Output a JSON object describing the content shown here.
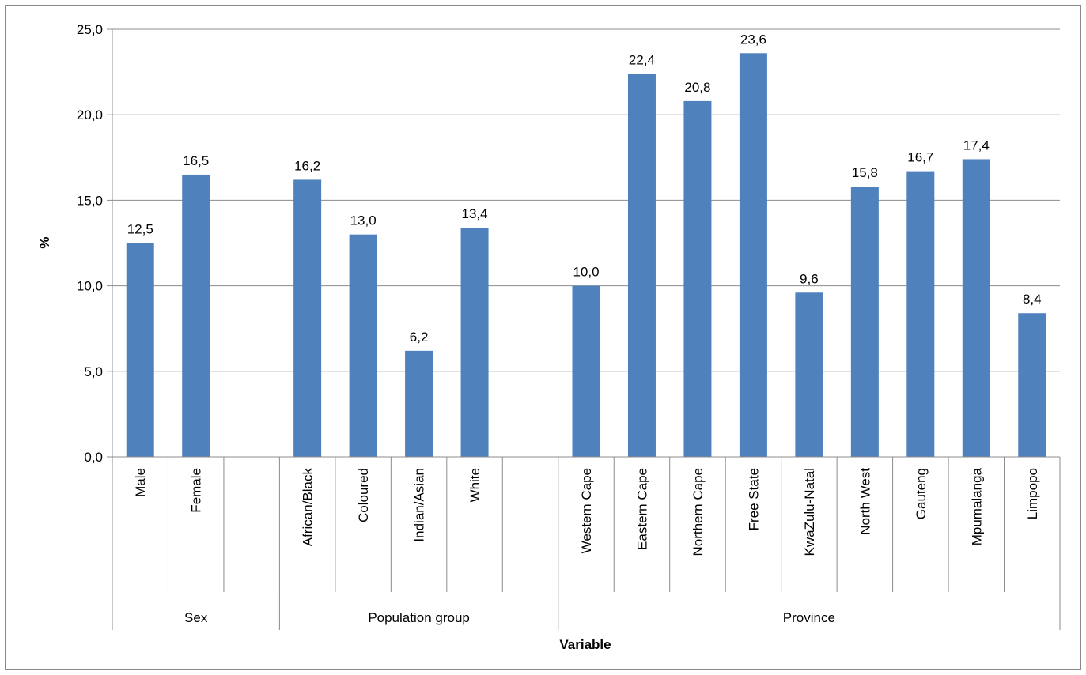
{
  "chart_data": {
    "type": "bar",
    "ylabel": "%",
    "xlabel": "Variable",
    "ylim": [
      0,
      25
    ],
    "ytick_step": 5,
    "ytick_labels": [
      "0,0",
      "5,0",
      "10,0",
      "15,0",
      "20,0",
      "25,0"
    ],
    "grid": "horizontal",
    "bar_color": "#4F81BD",
    "groups": [
      {
        "name": "Sex",
        "categories": [
          "Male",
          "Female",
          ""
        ]
      },
      {
        "name": "Population group",
        "categories": [
          "African/Black",
          "Coloured",
          "Indian/Asian",
          "White",
          ""
        ]
      },
      {
        "name": "Province",
        "categories": [
          "Western Cape",
          "Eastern Cape",
          "Northern Cape",
          "Free State",
          "KwaZulu-Natal",
          "North West",
          "Gauteng",
          "Mpumalanga",
          "Limpopo"
        ]
      }
    ],
    "categories": [
      "Male",
      "Female",
      "",
      "African/Black",
      "Coloured",
      "Indian/Asian",
      "White",
      "",
      "Western Cape",
      "Eastern Cape",
      "Northern Cape",
      "Free State",
      "KwaZulu-Natal",
      "North West",
      "Gauteng",
      "Mpumalanga",
      "Limpopo"
    ],
    "values": [
      12.5,
      16.5,
      null,
      16.2,
      13.0,
      6.2,
      13.4,
      null,
      10.0,
      22.4,
      20.8,
      23.6,
      9.6,
      15.8,
      16.7,
      17.4,
      8.4
    ],
    "data_labels": [
      "12,5",
      "16,5",
      "",
      "16,2",
      "13,0",
      "6,2",
      "13,4",
      "",
      "10,0",
      "22,4",
      "20,8",
      "23,6",
      "9,6",
      "15,8",
      "16,7",
      "17,4",
      "8,4"
    ]
  }
}
